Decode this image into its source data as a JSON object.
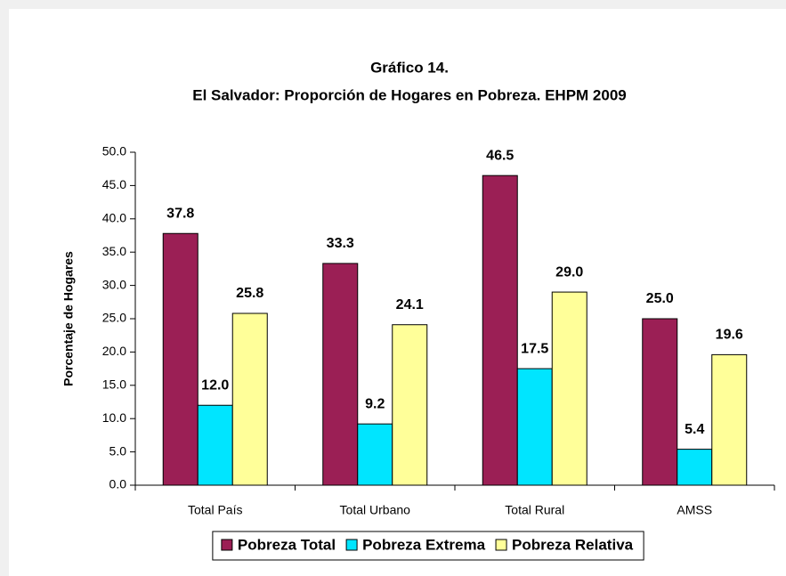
{
  "chart_data": {
    "type": "bar",
    "title": "Gráfico 14.",
    "subtitle": "El Salvador: Proporción de Hogares en Pobreza. EHPM 2009",
    "ylabel": "Porcentaje de Hogares",
    "categories": [
      "Total País",
      "Total Urbano",
      "Total Rural",
      "AMSS"
    ],
    "series": [
      {
        "name": "Pobreza Total",
        "color": "#9b1f55",
        "values": [
          37.8,
          33.3,
          46.5,
          25.0
        ],
        "value_labels": [
          "37.8",
          "33.3",
          "46.5",
          "25.0"
        ]
      },
      {
        "name": "Pobreza Extrema",
        "color": "#00e5ff",
        "values": [
          12.0,
          9.2,
          17.5,
          5.4
        ],
        "value_labels": [
          "12.0",
          "9.2",
          "17.5",
          "5.4"
        ]
      },
      {
        "name": "Pobreza Relativa",
        "color": "#ffff99",
        "values": [
          25.8,
          24.1,
          29.0,
          19.6
        ],
        "value_labels": [
          "25.8",
          "24.1",
          "29.0",
          "19.6"
        ]
      }
    ],
    "ylim": [
      0,
      50
    ],
    "yticks": [
      {
        "value": 0,
        "label": "0.0"
      },
      {
        "value": 5,
        "label": "5.0"
      },
      {
        "value": 10,
        "label": "10.0"
      },
      {
        "value": 15,
        "label": "15.0"
      },
      {
        "value": 20,
        "label": "20.0"
      },
      {
        "value": 25,
        "label": "25.0"
      },
      {
        "value": 30,
        "label": "30.0"
      },
      {
        "value": 35,
        "label": "35.0"
      },
      {
        "value": 40,
        "label": "40.0"
      },
      {
        "value": 45,
        "label": "45.0"
      },
      {
        "value": 50,
        "label": "50.0"
      }
    ],
    "grid": false,
    "legend": "bottom"
  }
}
